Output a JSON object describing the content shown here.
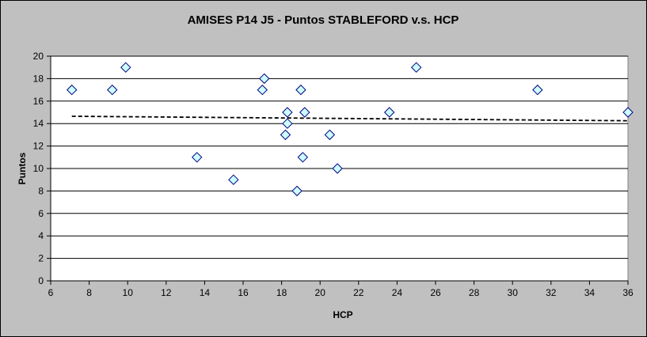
{
  "chart_data": {
    "type": "scatter",
    "title": "AMISES P14 J5 - Puntos STABLEFORD v.s. HCP",
    "xlabel": "HCP",
    "ylabel": "Puntos",
    "xlim": [
      6,
      36
    ],
    "ylim": [
      0,
      20
    ],
    "xticks": [
      6,
      8,
      10,
      12,
      14,
      16,
      18,
      20,
      22,
      24,
      26,
      28,
      30,
      32,
      34,
      36
    ],
    "yticks": [
      0,
      2,
      4,
      6,
      8,
      10,
      12,
      14,
      16,
      18,
      20
    ],
    "grid": "horizontal",
    "legend": "none",
    "marker": "diamond",
    "colors": {
      "marker_fill": "#ccffff",
      "marker_stroke": "#000080",
      "plot_bg": "#ffffff",
      "chart_bg": "#c0c0c0",
      "trend": "#000000"
    },
    "series": [
      {
        "points": [
          [
            7.1,
            17
          ],
          [
            9.2,
            17
          ],
          [
            9.9,
            19
          ],
          [
            13.6,
            11
          ],
          [
            15.5,
            9
          ],
          [
            17.0,
            17
          ],
          [
            17.1,
            18
          ],
          [
            18.2,
            13
          ],
          [
            18.3,
            14
          ],
          [
            18.3,
            15
          ],
          [
            18.8,
            8
          ],
          [
            19.0,
            17
          ],
          [
            19.1,
            11
          ],
          [
            19.2,
            15
          ],
          [
            20.5,
            13
          ],
          [
            20.9,
            10
          ],
          [
            23.6,
            15
          ],
          [
            25.0,
            19
          ],
          [
            31.3,
            17
          ],
          [
            36.0,
            15
          ]
        ]
      }
    ],
    "trendline": {
      "type": "linear",
      "style": "dashed",
      "from": [
        7.1,
        14.65
      ],
      "to": [
        36,
        14.25
      ]
    }
  }
}
